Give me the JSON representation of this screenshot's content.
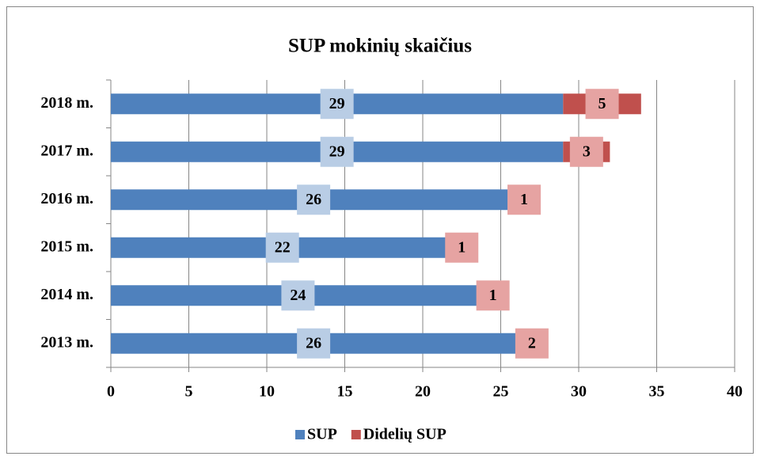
{
  "chart_data": {
    "type": "stacked_bar_horizontal",
    "title": "SUP mokinių skaičius",
    "categories": [
      "2018 m.",
      "2017 m.",
      "2016 m.",
      "2015 m.",
      "2014 m.",
      "2013 m."
    ],
    "series": [
      {
        "name": "SUP",
        "color": "#4f81bd",
        "label_color": "#b9cde5",
        "values": [
          29,
          29,
          26,
          22,
          24,
          26
        ]
      },
      {
        "name": "Didelių SUP",
        "color": "#c0504d",
        "label_color": "#e6a3a2",
        "values": [
          5,
          3,
          1,
          1,
          1,
          2
        ]
      }
    ],
    "xlim": [
      0,
      40
    ],
    "xticks": [
      0,
      5,
      10,
      15,
      20,
      25,
      30,
      35,
      40
    ],
    "grid": true,
    "legend": "bottom"
  }
}
